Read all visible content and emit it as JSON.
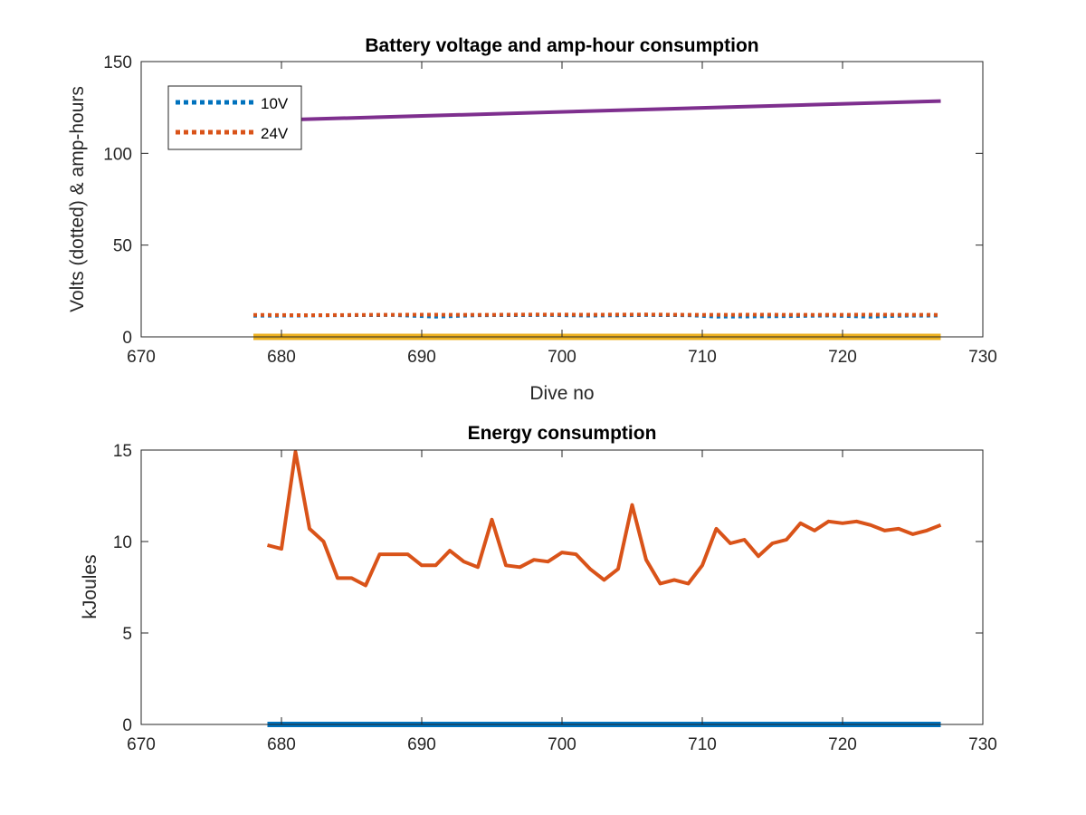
{
  "chart_data": [
    {
      "type": "line",
      "title": "Battery voltage and amp-hour consumption",
      "xlabel": "Dive no",
      "ylabel": "Volts (dotted) & amp-hours",
      "xlim": [
        670,
        730
      ],
      "ylim": [
        0,
        150
      ],
      "xticks": [
        670,
        680,
        690,
        700,
        710,
        720,
        730
      ],
      "yticks": [
        0,
        50,
        100,
        150
      ],
      "grid": false,
      "legend_position": "top-left",
      "series": [
        {
          "name": "10V",
          "style": "dotted",
          "color": "#0072BD",
          "points": [
            [
              678,
              11.5
            ],
            [
              681,
              11.6
            ],
            [
              684,
              11.8
            ],
            [
              688,
              11.9
            ],
            [
              691,
              11.0
            ],
            [
              694,
              11.8
            ],
            [
              699,
              11.9
            ],
            [
              702,
              11.6
            ],
            [
              706,
              11.9
            ],
            [
              709,
              11.8
            ],
            [
              711,
              11.0
            ],
            [
              715,
              11.2
            ],
            [
              719,
              11.6
            ],
            [
              722,
              11.0
            ],
            [
              724,
              11.5
            ],
            [
              727,
              11.6
            ]
          ]
        },
        {
          "name": "24V",
          "style": "dotted",
          "color": "#D95319",
          "points": [
            [
              678,
              12.0
            ],
            [
              682,
              11.8
            ],
            [
              686,
              12.0
            ],
            [
              690,
              12.1
            ],
            [
              694,
              12.0
            ],
            [
              698,
              12.2
            ],
            [
              702,
              12.1
            ],
            [
              706,
              12.2
            ],
            [
              710,
              12.0
            ],
            [
              714,
              12.1
            ],
            [
              718,
              12.0
            ],
            [
              722,
              12.1
            ],
            [
              727,
              12.0
            ]
          ]
        },
        {
          "style": "solid",
          "color": "#7E2F8E",
          "points": [
            [
              679,
              118
            ],
            [
              727,
              128.5
            ]
          ]
        },
        {
          "style": "solid",
          "color": "#EDB120",
          "points": [
            [
              678,
              0
            ],
            [
              727,
              0
            ]
          ]
        }
      ]
    },
    {
      "type": "line",
      "title": "Energy consumption",
      "xlabel": "",
      "ylabel": "kJoules",
      "xlim": [
        670,
        730
      ],
      "ylim": [
        0,
        15
      ],
      "xticks": [
        670,
        680,
        690,
        700,
        710,
        720,
        730
      ],
      "yticks": [
        0,
        5,
        10,
        15
      ],
      "grid": false,
      "series": [
        {
          "style": "solid",
          "color": "#0072BD",
          "points": [
            [
              679,
              0
            ],
            [
              727,
              0
            ]
          ]
        },
        {
          "style": "solid",
          "color": "#D95319",
          "points": [
            [
              679,
              9.8
            ],
            [
              680,
              9.6
            ],
            [
              681,
              14.9
            ],
            [
              682,
              10.7
            ],
            [
              683,
              10.0
            ],
            [
              684,
              8.0
            ],
            [
              685,
              8.0
            ],
            [
              686,
              7.6
            ],
            [
              687,
              9.3
            ],
            [
              688,
              9.3
            ],
            [
              689,
              9.3
            ],
            [
              690,
              8.7
            ],
            [
              691,
              8.7
            ],
            [
              692,
              9.5
            ],
            [
              693,
              8.9
            ],
            [
              694,
              8.6
            ],
            [
              695,
              11.2
            ],
            [
              696,
              8.7
            ],
            [
              697,
              8.6
            ],
            [
              698,
              9.0
            ],
            [
              699,
              8.9
            ],
            [
              700,
              9.4
            ],
            [
              701,
              9.3
            ],
            [
              702,
              8.5
            ],
            [
              703,
              7.9
            ],
            [
              704,
              8.5
            ],
            [
              705,
              12.0
            ],
            [
              706,
              9.0
            ],
            [
              707,
              7.7
            ],
            [
              708,
              7.9
            ],
            [
              709,
              7.7
            ],
            [
              710,
              8.7
            ],
            [
              711,
              10.7
            ],
            [
              712,
              9.9
            ],
            [
              713,
              10.1
            ],
            [
              714,
              9.2
            ],
            [
              715,
              9.9
            ],
            [
              716,
              10.1
            ],
            [
              717,
              11.0
            ],
            [
              718,
              10.6
            ],
            [
              719,
              11.1
            ],
            [
              720,
              11.0
            ],
            [
              721,
              11.1
            ],
            [
              722,
              10.9
            ],
            [
              723,
              10.6
            ],
            [
              724,
              10.7
            ],
            [
              725,
              10.4
            ],
            [
              726,
              10.6
            ],
            [
              727,
              10.9
            ]
          ]
        }
      ]
    }
  ]
}
